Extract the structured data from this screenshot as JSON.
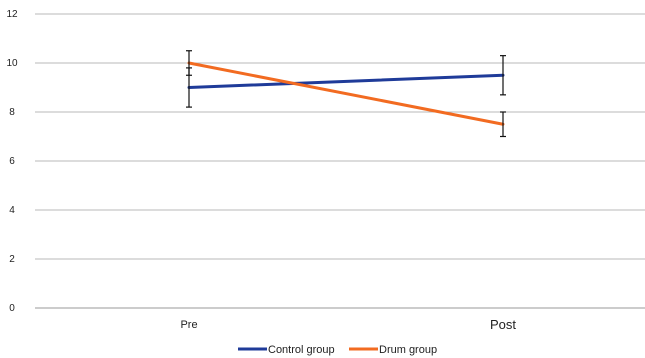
{
  "chart_data": {
    "type": "line",
    "title": "",
    "xlabel": "",
    "ylabel": "",
    "categories": [
      "Pre",
      "Post"
    ],
    "y_ticks": [
      "0",
      "2",
      "4",
      "6",
      "8",
      "10",
      "12"
    ],
    "ylim": [
      0,
      12
    ],
    "grid": true,
    "legend_position": "bottom",
    "series": [
      {
        "name": "Control group",
        "color": "#1f3b99",
        "values": [
          9.0,
          9.5
        ],
        "error_low": [
          8.2,
          8.7
        ],
        "error_high": [
          9.8,
          10.3
        ]
      },
      {
        "name": "Drum group",
        "color": "#f26b21",
        "values": [
          10.0,
          7.5
        ],
        "error_low": [
          9.5,
          7.0
        ],
        "error_high": [
          10.5,
          8.0
        ]
      }
    ]
  }
}
